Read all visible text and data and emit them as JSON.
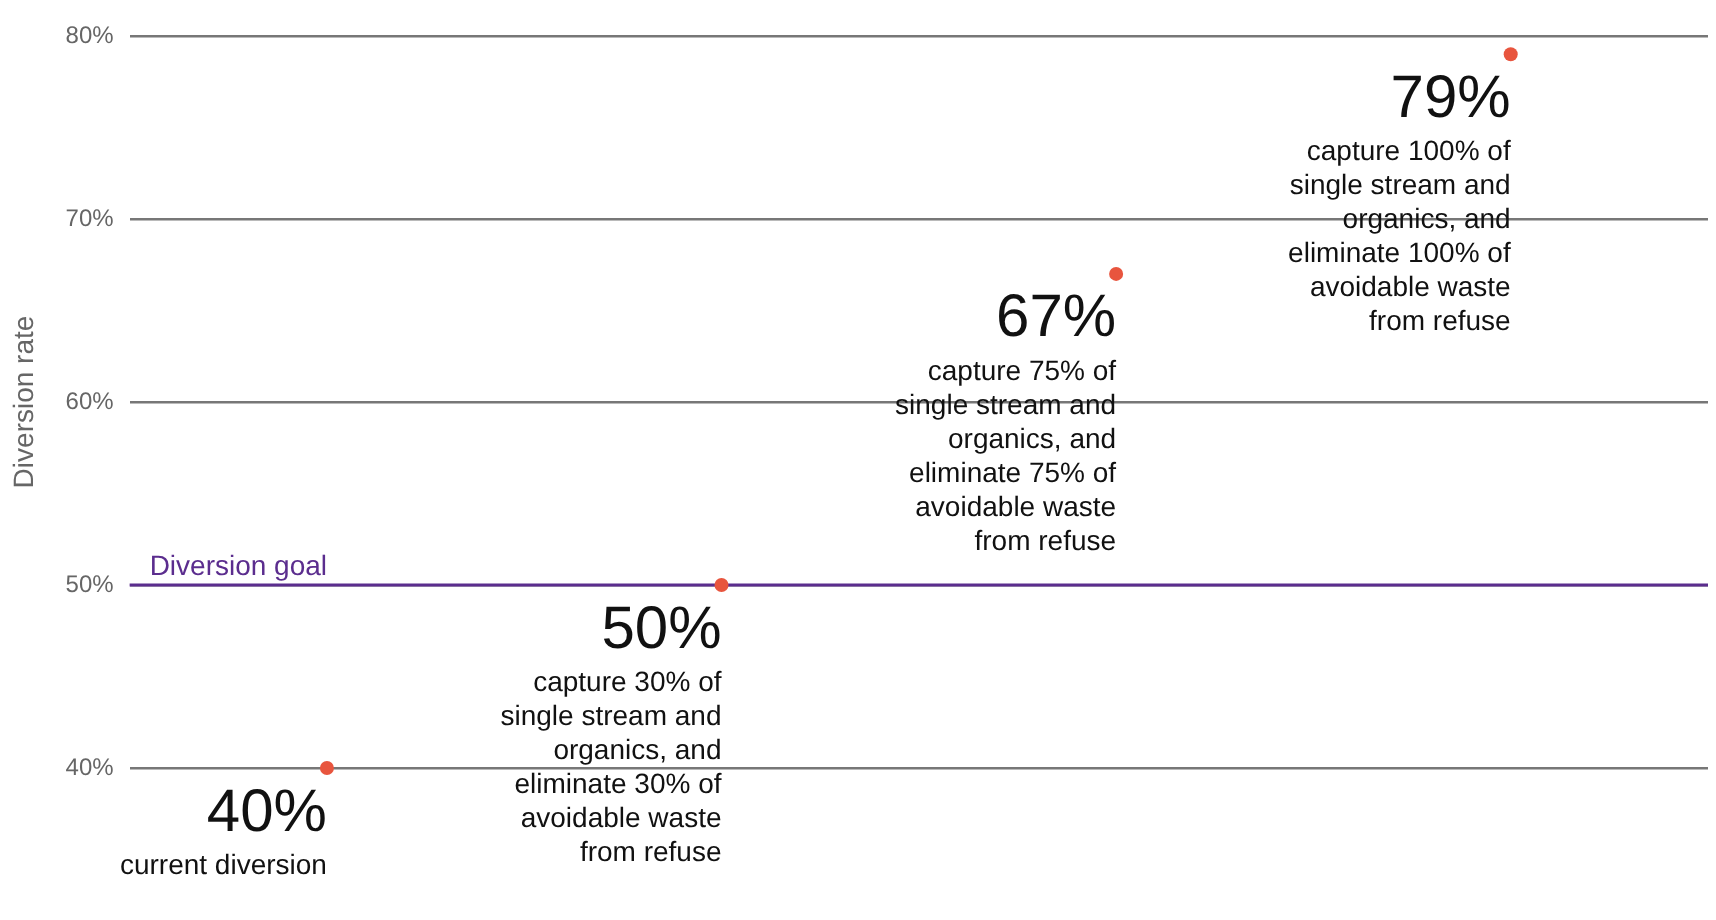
{
  "chart_data": {
    "type": "scatter",
    "ylabel": "Diversion rate",
    "categories": [
      null,
      null,
      null,
      null
    ],
    "series": [
      {
        "color": "#e8553e",
        "values": [
          40,
          50,
          67,
          79
        ],
        "value_labels": [
          "40%",
          "50%",
          "67%",
          "79%"
        ]
      }
    ],
    "ylim": [
      40,
      80
    ],
    "yticks": [
      {
        "value": 40,
        "label": "40%"
      },
      {
        "value": 50,
        "label": "50%"
      },
      {
        "value": 60,
        "label": "60%"
      },
      {
        "value": 70,
        "label": "70%"
      },
      {
        "value": 80,
        "label": "80%"
      }
    ],
    "grid": "y",
    "legend": false,
    "marker": "circle",
    "tick_labels": "y",
    "ref_lines": [
      {
        "axis": "y",
        "value": 50,
        "label": "Diversion goal",
        "color": "#5b2d8e"
      }
    ],
    "annotations": [
      "current diversion",
      "capture 30% of single stream and organics, and eliminate 30% of avoidable waste from refuse",
      "capture 75% of single stream and organics, and eliminate 75% of avoidable waste from refuse",
      "capture 100% of single stream and organics, and eliminate 100% of avoidable waste from refuse"
    ]
  }
}
